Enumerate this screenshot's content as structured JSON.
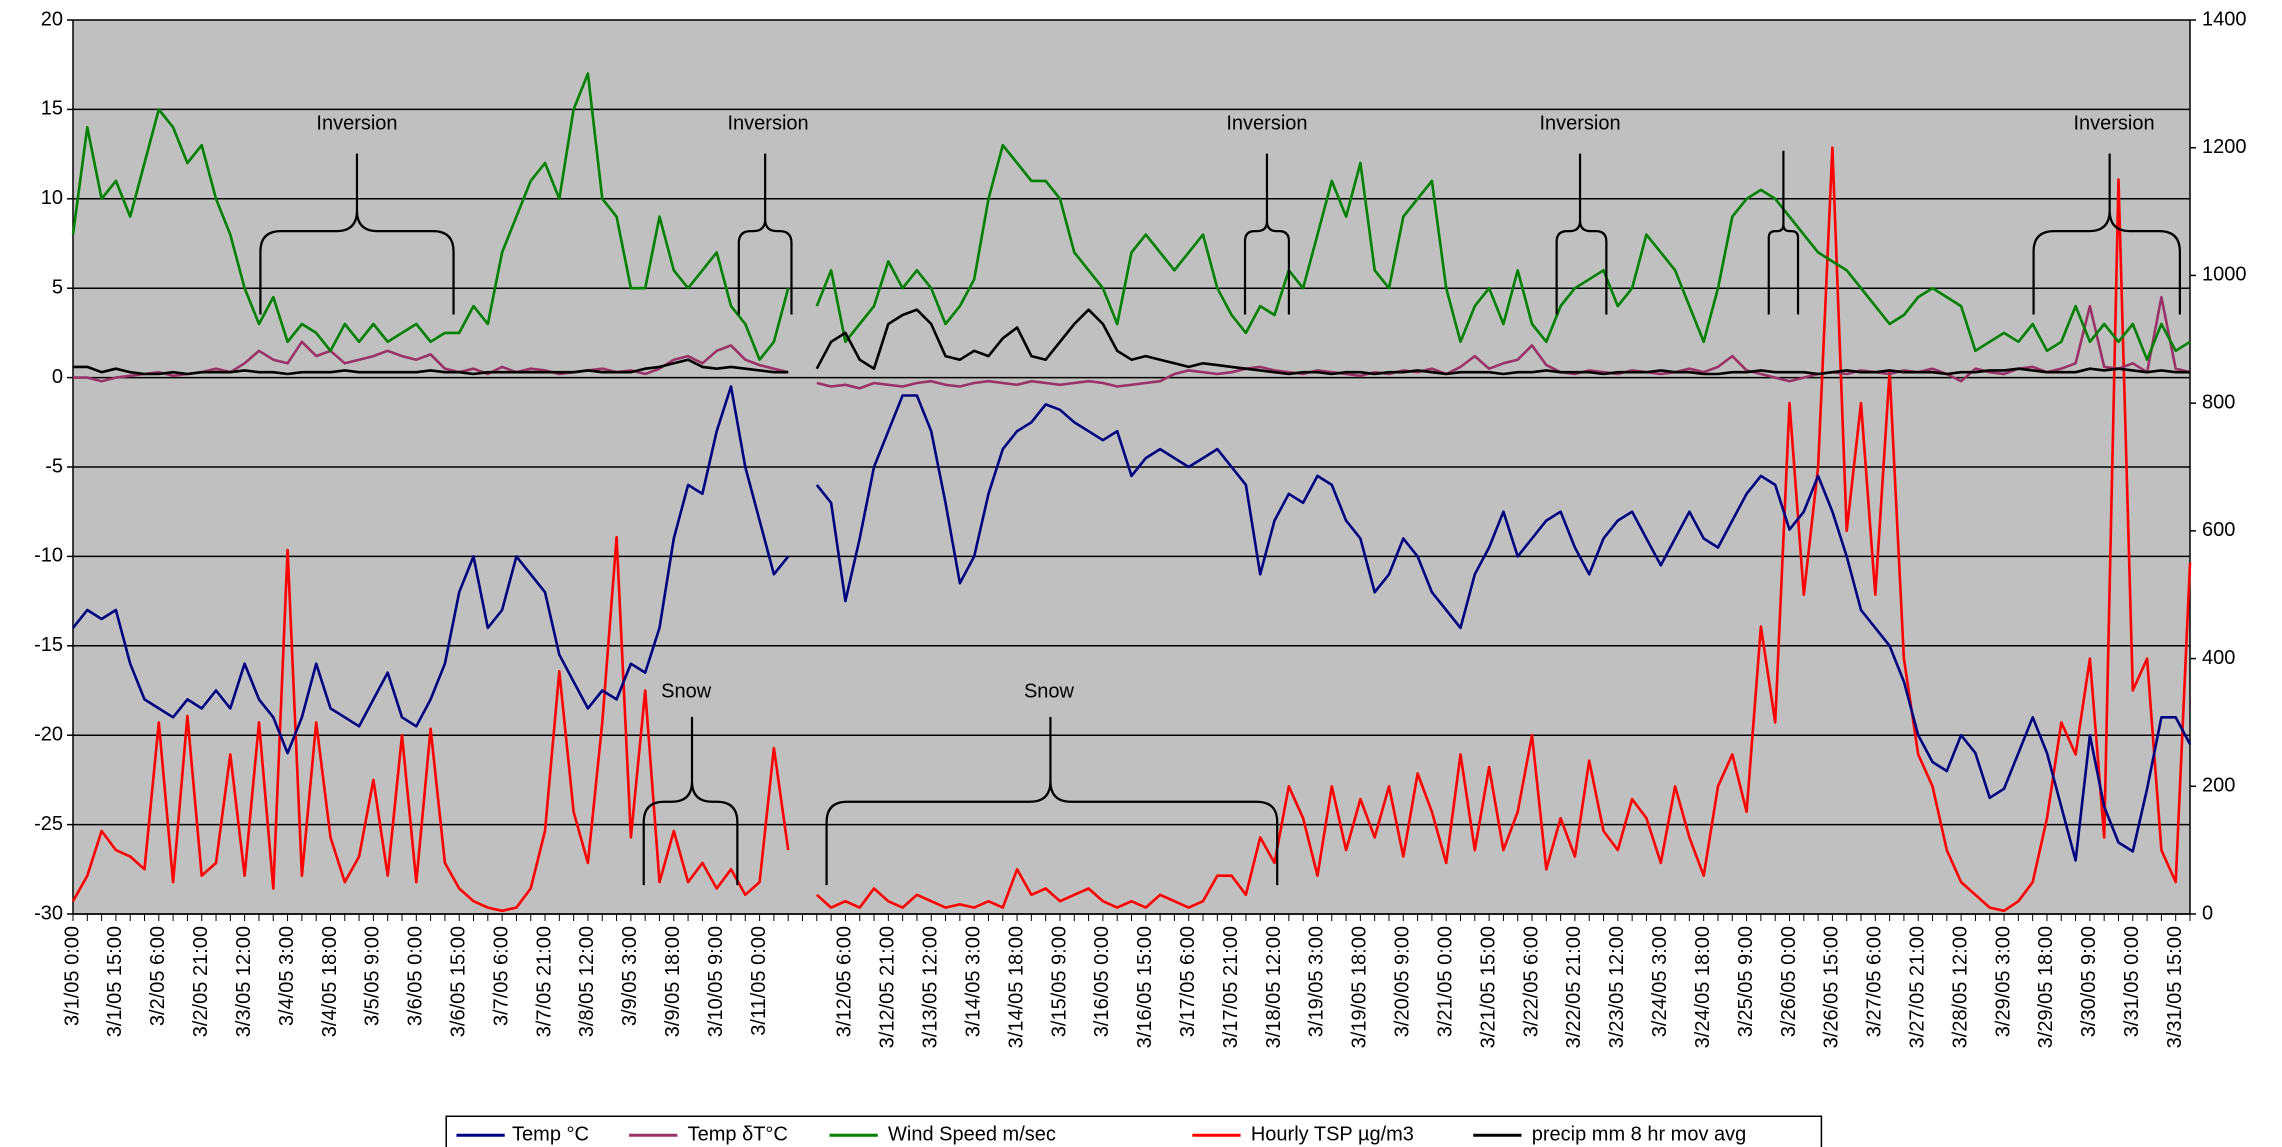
{
  "chart_data": {
    "type": "line",
    "categories": [
      "3/1/05 0:00",
      null,
      null,
      "3/1/05 15:00",
      null,
      null,
      "3/2/05 6:00",
      null,
      null,
      "3/2/05 21:00",
      null,
      null,
      "3/3/05 12:00",
      null,
      null,
      "3/4/05 3:00",
      null,
      null,
      "3/4/05 18:00",
      null,
      null,
      "3/5/05 9:00",
      null,
      null,
      "3/6/05 0:00",
      null,
      null,
      "3/6/05 15:00",
      null,
      null,
      "3/7/05 6:00",
      null,
      null,
      "3/7/05 21:00",
      null,
      null,
      "3/8/05 12:00",
      null,
      null,
      "3/9/05 3:00",
      null,
      null,
      "3/9/05 18:00",
      null,
      null,
      "3/10/05 9:00",
      null,
      null,
      "3/11/05 0:00",
      null,
      null,
      null,
      null,
      null,
      "3/12/05 6:00",
      null,
      null,
      "3/12/05 21:00",
      null,
      null,
      "3/13/05 12:00",
      null,
      null,
      "3/14/05 3:00",
      null,
      null,
      "3/14/05 18:00",
      null,
      null,
      "3/15/05 9:00",
      null,
      null,
      "3/16/05 0:00",
      null,
      null,
      "3/16/05 15:00",
      null,
      null,
      "3/17/05 6:00",
      null,
      null,
      "3/17/05 21:00",
      null,
      null,
      "3/18/05 12:00",
      null,
      null,
      "3/19/05 3:00",
      null,
      null,
      "3/19/05 18:00",
      null,
      null,
      "3/20/05 9:00",
      null,
      null,
      "3/21/05 0:00",
      null,
      null,
      "3/21/05 15:00",
      null,
      null,
      "3/22/05 6:00",
      null,
      null,
      "3/22/05 21:00",
      null,
      null,
      "3/23/05 12:00",
      null,
      null,
      "3/24/05 3:00",
      null,
      null,
      "3/24/05 18:00",
      null,
      null,
      "3/25/05 9:00",
      null,
      null,
      "3/26/05 0:00",
      null,
      null,
      "3/26/05 15:00",
      null,
      null,
      "3/27/05 6:00",
      null,
      null,
      "3/27/05 21:00",
      null,
      null,
      "3/28/05 12:00",
      null,
      null,
      "3/29/05 3:00",
      null,
      null,
      "3/29/05 18:00",
      null,
      null,
      "3/30/05 9:00",
      null,
      null,
      "3/31/05 0:00",
      null,
      null,
      "3/31/05 15:00",
      null
    ],
    "series": [
      {
        "name": "Temp °C",
        "color": "#000080",
        "values": [
          -14,
          -13,
          -13.5,
          -13,
          -16,
          -18,
          -18.5,
          -19,
          -18,
          -18.5,
          -17.5,
          -18.5,
          -16,
          -18,
          -19,
          -21,
          -19,
          -16,
          -18.5,
          -19,
          -19.5,
          -18,
          -16.5,
          -19,
          -19.5,
          -18,
          -16,
          -12,
          -10,
          -14,
          -13,
          -10,
          -11,
          -12,
          -15.5,
          -17,
          -18.5,
          -17.5,
          -18,
          -16,
          -16.5,
          -14,
          -9,
          -6,
          -6.5,
          -3,
          -0.5,
          -5,
          -8,
          -11,
          -10,
          null,
          -6,
          -7,
          -12.5,
          -9,
          -5,
          -3,
          -1,
          -1,
          -3,
          -7,
          -11.5,
          -10,
          -6.5,
          -4,
          -3,
          -2.5,
          -1.5,
          -1.8,
          -2.5,
          -3,
          -3.5,
          -3,
          -5.5,
          -4.5,
          -4,
          -4.5,
          -5,
          -4.5,
          -4,
          -5,
          -6,
          -11,
          -8,
          -6.5,
          -7,
          -5.5,
          -6,
          -8,
          -9,
          -12,
          -11,
          -9,
          -10,
          -12,
          -13,
          -14,
          -11,
          -9.5,
          -7.5,
          -10,
          -9,
          -8,
          -7.5,
          -9.5,
          -11,
          -9,
          -8,
          -7.5,
          -9,
          -10.5,
          -9,
          -7.5,
          -9,
          -9.5,
          -8,
          -6.5,
          -5.5,
          -6,
          -8.5,
          -7.5,
          -5.5,
          -7.5,
          -10,
          -13,
          -14,
          -15,
          -17,
          -20,
          -21.5,
          -22,
          -20,
          -21,
          -23.5,
          -23,
          -21,
          -19,
          -21,
          -24,
          -27,
          -20,
          -24,
          -26,
          -26.5,
          -23,
          -19,
          -19,
          -20.5
        ]
      },
      {
        "name": "Temp δT°C",
        "color": "#993366",
        "values": [
          0,
          0,
          -0.2,
          0,
          0.1,
          0.2,
          0.3,
          0.1,
          0.2,
          0.3,
          0.5,
          0.3,
          0.8,
          1.5,
          1,
          0.8,
          2,
          1.2,
          1.5,
          0.8,
          1,
          1.2,
          1.5,
          1.2,
          1,
          1.3,
          0.5,
          0.3,
          0.5,
          0.2,
          0.6,
          0.3,
          0.5,
          0.4,
          0.2,
          0.3,
          0.4,
          0.5,
          0.3,
          0.4,
          0.2,
          0.5,
          1,
          1.2,
          0.8,
          1.5,
          1.8,
          1,
          0.7,
          0.5,
          0.3,
          null,
          -0.3,
          -0.5,
          -0.4,
          -0.6,
          -0.3,
          -0.4,
          -0.5,
          -0.3,
          -0.2,
          -0.4,
          -0.5,
          -0.3,
          -0.2,
          -0.3,
          -0.4,
          -0.2,
          -0.3,
          -0.4,
          -0.3,
          -0.2,
          -0.3,
          -0.5,
          -0.4,
          -0.3,
          -0.2,
          0.2,
          0.4,
          0.3,
          0.2,
          0.3,
          0.5,
          0.6,
          0.4,
          0.3,
          0.2,
          0.4,
          0.3,
          0.2,
          0.1,
          0.3,
          0.2,
          0.4,
          0.3,
          0.5,
          0.2,
          0.6,
          1.2,
          0.5,
          0.8,
          1,
          1.8,
          0.7,
          0.3,
          0.2,
          0.4,
          0.3,
          0.2,
          0.4,
          0.3,
          0.2,
          0.3,
          0.5,
          0.3,
          0.6,
          1.2,
          0.4,
          0.2,
          0,
          -0.2,
          0,
          0.2,
          0.3,
          0.2,
          0.4,
          0.3,
          0.2,
          0.4,
          0.3,
          0.5,
          0.2,
          -0.2,
          0.5,
          0.3,
          0.2,
          0.5,
          0.6,
          0.3,
          0.5,
          0.8,
          4,
          0.6,
          0.5,
          0.8,
          0.3,
          4.5,
          0.5,
          0.3
        ]
      },
      {
        "name": "Wind Speed m/sec",
        "color": "#008000",
        "values": [
          8,
          14,
          10,
          11,
          9,
          12,
          15,
          14,
          12,
          13,
          10,
          8,
          5,
          3,
          4.5,
          2,
          3,
          2.5,
          1.5,
          3,
          2,
          3,
          2,
          2.5,
          3,
          2,
          2.5,
          2.5,
          4,
          3,
          7,
          9,
          11,
          12,
          10,
          15,
          17,
          10,
          9,
          5,
          5,
          9,
          6,
          5,
          6,
          7,
          4,
          3,
          1,
          2,
          5,
          null,
          4,
          6,
          2,
          3,
          4,
          6.5,
          5,
          6,
          5,
          3,
          4,
          5.5,
          10,
          13,
          12,
          11,
          11,
          10,
          7,
          6,
          5,
          3,
          7,
          8,
          7,
          6,
          7,
          8,
          5,
          3.5,
          2.5,
          4,
          3.5,
          6,
          5,
          8,
          11,
          9,
          12,
          6,
          5,
          9,
          10,
          11,
          5,
          2,
          4,
          5,
          3,
          6,
          3,
          2,
          4,
          5,
          5.5,
          6,
          4,
          5,
          8,
          7,
          6,
          4,
          2,
          5,
          9,
          10,
          10.5,
          10,
          9,
          8,
          7,
          6.5,
          6,
          5,
          4,
          3,
          3.5,
          4.5,
          5,
          4.5,
          4,
          1.5,
          2,
          2.5,
          2,
          3,
          1.5,
          2,
          4,
          2,
          3,
          2,
          3,
          1,
          3,
          1.5,
          2
        ]
      },
      {
        "name": "Hourly TSP µg/m3",
        "color": "#ff0000",
        "axis": "y2",
        "values": [
          20,
          60,
          130,
          100,
          90,
          70,
          300,
          50,
          310,
          60,
          80,
          250,
          60,
          300,
          40,
          570,
          60,
          300,
          120,
          50,
          90,
          210,
          60,
          280,
          50,
          290,
          80,
          40,
          20,
          10,
          5,
          10,
          40,
          130,
          380,
          160,
          80,
          300,
          590,
          120,
          350,
          50,
          130,
          50,
          80,
          40,
          70,
          30,
          50,
          260,
          100,
          null,
          30,
          10,
          20,
          10,
          40,
          20,
          10,
          30,
          20,
          10,
          15,
          10,
          20,
          10,
          70,
          30,
          40,
          20,
          30,
          40,
          20,
          10,
          20,
          10,
          30,
          20,
          10,
          20,
          60,
          60,
          30,
          120,
          80,
          200,
          150,
          60,
          200,
          100,
          180,
          120,
          200,
          90,
          220,
          160,
          80,
          250,
          100,
          230,
          100,
          160,
          280,
          70,
          150,
          90,
          240,
          130,
          100,
          180,
          150,
          80,
          200,
          120,
          60,
          200,
          250,
          160,
          450,
          300,
          800,
          500,
          700,
          1200,
          600,
          800,
          500,
          850,
          400,
          250,
          200,
          100,
          50,
          30,
          10,
          5,
          20,
          50,
          150,
          300,
          250,
          400,
          120,
          1150,
          350,
          400,
          100,
          50,
          550
        ]
      },
      {
        "name": "precip mm 8 hr mov avg",
        "color": "#000000",
        "values": [
          0.6,
          0.6,
          0.3,
          0.5,
          0.3,
          0.2,
          0.2,
          0.3,
          0.2,
          0.3,
          0.3,
          0.3,
          0.4,
          0.3,
          0.3,
          0.2,
          0.3,
          0.3,
          0.3,
          0.4,
          0.3,
          0.3,
          0.3,
          0.3,
          0.3,
          0.4,
          0.3,
          0.3,
          0.2,
          0.3,
          0.3,
          0.3,
          0.3,
          0.3,
          0.3,
          0.3,
          0.4,
          0.3,
          0.3,
          0.3,
          0.5,
          0.6,
          0.8,
          1,
          0.6,
          0.5,
          0.6,
          0.5,
          0.4,
          0.3,
          0.3,
          null,
          0.5,
          2,
          2.5,
          1,
          0.5,
          3,
          3.5,
          3.8,
          3,
          1.2,
          1,
          1.5,
          1.2,
          2.2,
          2.8,
          1.2,
          1,
          2,
          3,
          3.8,
          3,
          1.5,
          1,
          1.2,
          1,
          0.8,
          0.6,
          0.8,
          0.7,
          0.6,
          0.5,
          0.4,
          0.3,
          0.2,
          0.3,
          0.3,
          0.2,
          0.3,
          0.3,
          0.2,
          0.3,
          0.3,
          0.4,
          0.3,
          0.2,
          0.3,
          0.3,
          0.3,
          0.2,
          0.3,
          0.3,
          0.4,
          0.3,
          0.3,
          0.3,
          0.2,
          0.3,
          0.3,
          0.3,
          0.4,
          0.3,
          0.3,
          0.2,
          0.2,
          0.3,
          0.3,
          0.4,
          0.3,
          0.3,
          0.3,
          0.2,
          0.3,
          0.4,
          0.3,
          0.3,
          0.4,
          0.3,
          0.3,
          0.3,
          0.2,
          0.3,
          0.3,
          0.4,
          0.4,
          0.5,
          0.4,
          0.3,
          0.3,
          0.3,
          0.5,
          0.4,
          0.5,
          0.4,
          0.3,
          0.4,
          0.3,
          0.3
        ]
      }
    ],
    "ylim": [
      -30,
      20
    ],
    "yticks": [
      -30,
      -25,
      -20,
      -15,
      -10,
      -5,
      0,
      5,
      10,
      15,
      20
    ],
    "y2lim": [
      0,
      1400
    ],
    "y2ticks": [
      0,
      200,
      400,
      600,
      800,
      1000,
      1200,
      1400
    ],
    "grid": true,
    "background": "#c0c0c0",
    "legend": "bottom",
    "annotations": [
      "Inversion",
      "Inversion",
      "Inversion",
      "Inversion",
      "Inversion",
      "Snow",
      "Snow"
    ]
  }
}
